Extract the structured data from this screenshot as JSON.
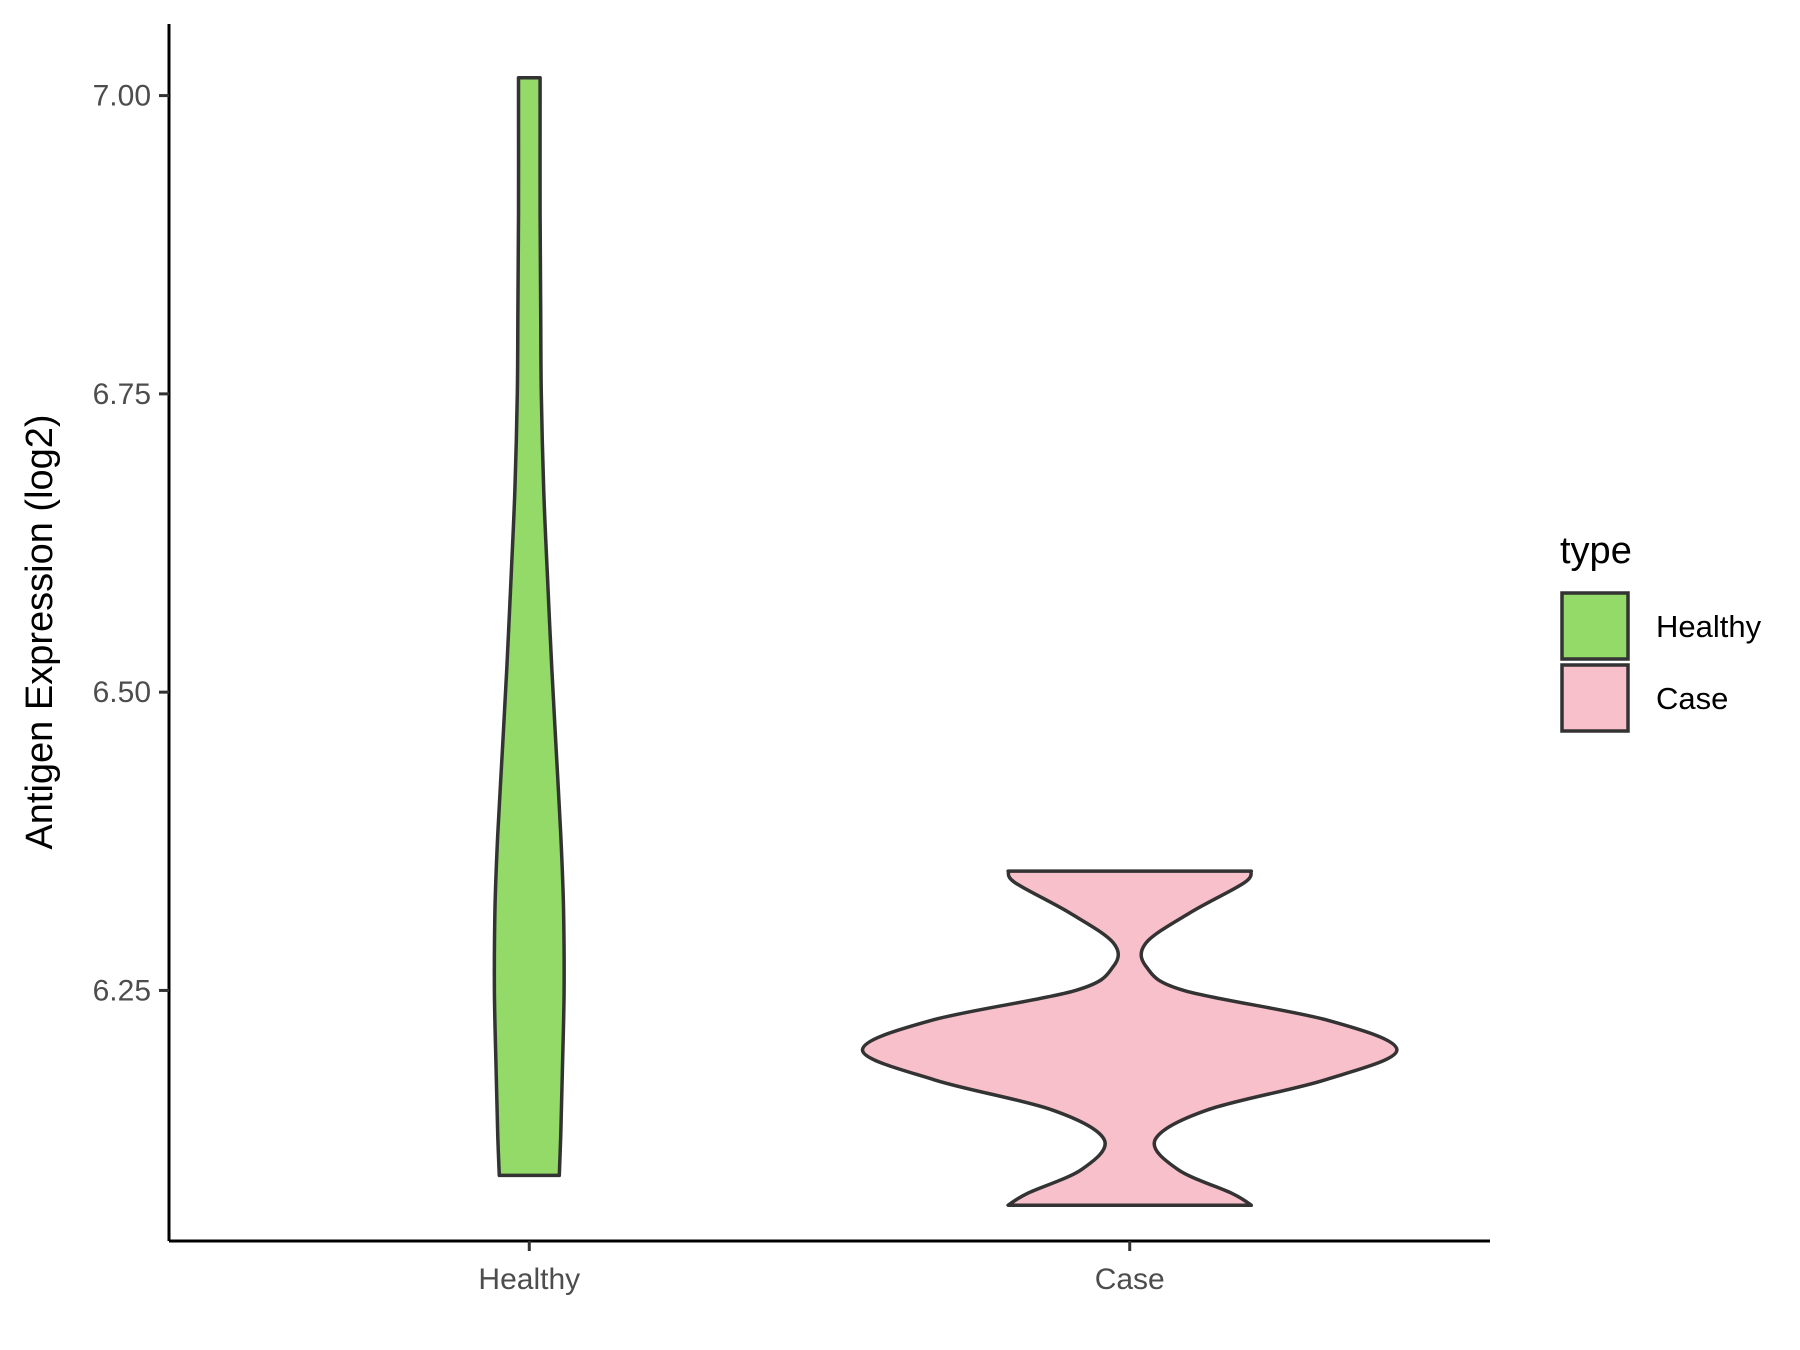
{
  "chart_data": {
    "type": "violin",
    "ylabel": "Antigen Expression (log2)",
    "ylim": [
      6.04,
      7.06
    ],
    "yticks": [
      "6.25",
      "6.50",
      "6.75",
      "7.00"
    ],
    "categories": [
      "Healthy",
      "Case"
    ],
    "grid": false,
    "legend_position": "right",
    "legend": {
      "title": "type",
      "entries": [
        "Healthy",
        "Case"
      ]
    },
    "series": [
      {
        "name": "Healthy",
        "color": "#93DA69",
        "profile": [
          {
            "y": 6.095,
            "w": 0.1
          },
          {
            "y": 6.13,
            "w": 0.105
          },
          {
            "y": 6.18,
            "w": 0.11
          },
          {
            "y": 6.25,
            "w": 0.116
          },
          {
            "y": 6.32,
            "w": 0.114
          },
          {
            "y": 6.38,
            "w": 0.105
          },
          {
            "y": 6.45,
            "w": 0.09
          },
          {
            "y": 6.52,
            "w": 0.075
          },
          {
            "y": 6.6,
            "w": 0.06
          },
          {
            "y": 6.67,
            "w": 0.048
          },
          {
            "y": 6.75,
            "w": 0.04
          },
          {
            "y": 6.82,
            "w": 0.038
          },
          {
            "y": 6.9,
            "w": 0.036
          },
          {
            "y": 7.0,
            "w": 0.036
          },
          {
            "y": 7.015,
            "w": 0.036
          }
        ]
      },
      {
        "name": "Case",
        "color": "#F8C0CB",
        "profile": [
          {
            "y": 6.07,
            "w": 0.405
          },
          {
            "y": 6.08,
            "w": 0.34
          },
          {
            "y": 6.1,
            "w": 0.16
          },
          {
            "y": 6.125,
            "w": 0.085
          },
          {
            "y": 6.15,
            "w": 0.26
          },
          {
            "y": 6.175,
            "w": 0.65
          },
          {
            "y": 6.2,
            "w": 0.89
          },
          {
            "y": 6.225,
            "w": 0.66
          },
          {
            "y": 6.25,
            "w": 0.18
          },
          {
            "y": 6.27,
            "w": 0.055
          },
          {
            "y": 6.29,
            "w": 0.055
          },
          {
            "y": 6.315,
            "w": 0.2
          },
          {
            "y": 6.34,
            "w": 0.38
          },
          {
            "y": 6.35,
            "w": 0.405
          }
        ]
      }
    ]
  }
}
